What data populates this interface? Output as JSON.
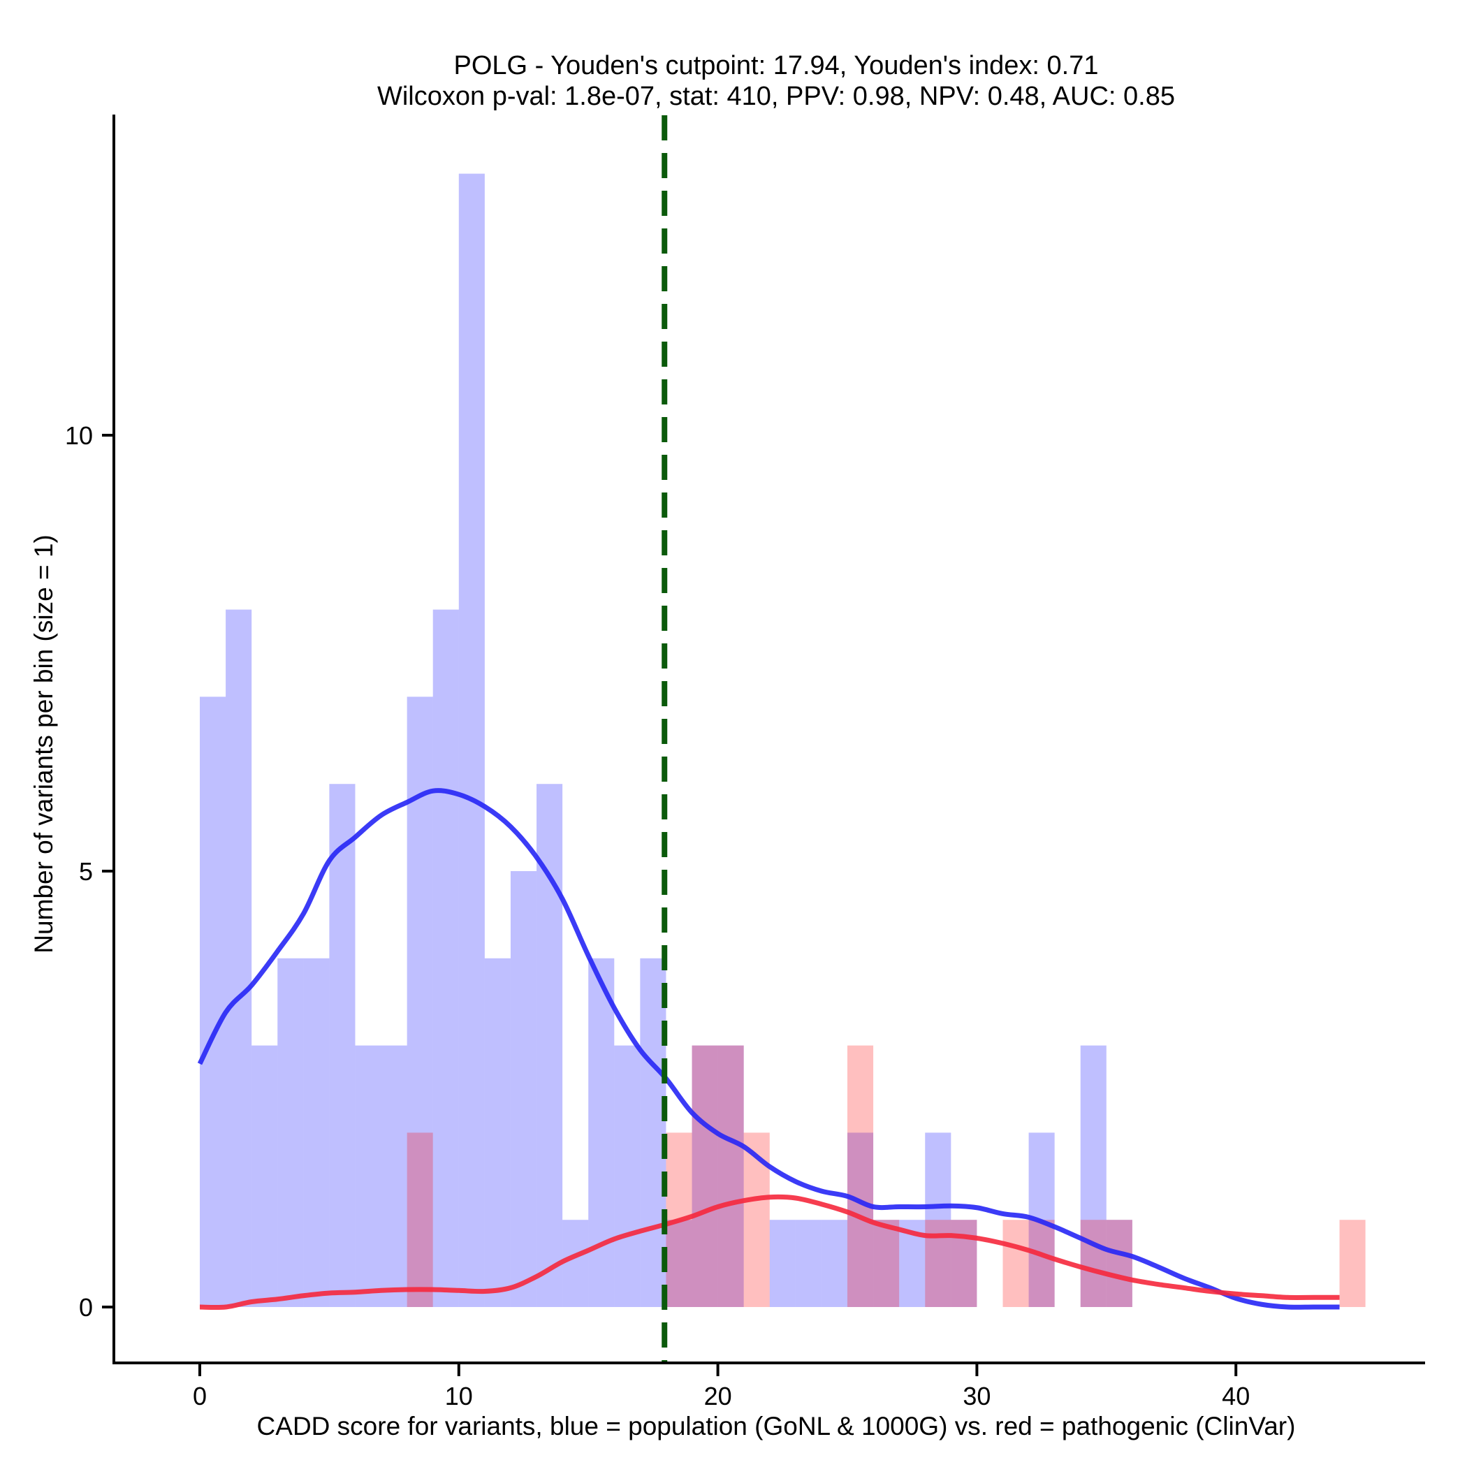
{
  "chart_data": {
    "type": "histogram",
    "title": "POLG - Youden's cutpoint: 17.94, Youden's index: 0.71",
    "subtitle": "Wilcoxon p-val: 1.8e-07, stat: 410, PPV: 0.98, NPV: 0.48, AUC: 0.85",
    "xlabel": "CADD score for variants, blue = population (GoNL & 1000G) vs. red = pathogenic (ClinVar)",
    "ylabel": "Number of variants per bin (size = 1)",
    "xlim": [
      -3.4,
      47.2
    ],
    "ylim": [
      -0.65,
      13.75
    ],
    "x_ticks": [
      0,
      10,
      20,
      30,
      40
    ],
    "x_tick_labels": [
      "0",
      "10",
      "20",
      "30",
      "40"
    ],
    "y_ticks": [
      0,
      5,
      10
    ],
    "y_tick_labels": [
      "0",
      "5",
      "10"
    ],
    "grid": false,
    "bin_width": 1,
    "cutpoint": {
      "value": 17.94,
      "label": "Youden's cutpoint",
      "color": "#0b5a0b",
      "style": "dashed"
    },
    "series": [
      {
        "name": "population (GoNL & 1000G)",
        "color": "#0000ff",
        "bar_alpha": 0.25,
        "bins": [
          {
            "start": 0,
            "count": 7
          },
          {
            "start": 1,
            "count": 8
          },
          {
            "start": 2,
            "count": 3
          },
          {
            "start": 3,
            "count": 4
          },
          {
            "start": 4,
            "count": 4
          },
          {
            "start": 5,
            "count": 6
          },
          {
            "start": 6,
            "count": 3
          },
          {
            "start": 7,
            "count": 3
          },
          {
            "start": 8,
            "count": 7
          },
          {
            "start": 9,
            "count": 8
          },
          {
            "start": 10,
            "count": 13
          },
          {
            "start": 11,
            "count": 4
          },
          {
            "start": 12,
            "count": 5
          },
          {
            "start": 13,
            "count": 6
          },
          {
            "start": 14,
            "count": 1
          },
          {
            "start": 15,
            "count": 4
          },
          {
            "start": 16,
            "count": 3
          },
          {
            "start": 17,
            "count": 4
          },
          {
            "start": 18,
            "count": 1
          },
          {
            "start": 19,
            "count": 3
          },
          {
            "start": 20,
            "count": 3
          },
          {
            "start": 22,
            "count": 1
          },
          {
            "start": 23,
            "count": 1
          },
          {
            "start": 24,
            "count": 1
          },
          {
            "start": 25,
            "count": 2
          },
          {
            "start": 26,
            "count": 1
          },
          {
            "start": 27,
            "count": 1
          },
          {
            "start": 28,
            "count": 2
          },
          {
            "start": 29,
            "count": 1
          },
          {
            "start": 32,
            "count": 2
          },
          {
            "start": 34,
            "count": 3
          },
          {
            "start": 35,
            "count": 1
          }
        ],
        "density_curve": {
          "color": "#2626f5",
          "x": [
            0,
            1,
            2,
            3,
            4,
            5,
            6,
            7,
            8,
            9,
            10,
            11,
            12,
            13,
            14,
            15,
            16,
            17,
            18,
            19,
            20,
            21,
            22,
            23,
            24,
            25,
            26,
            27,
            28,
            29,
            30,
            31,
            32,
            33,
            34,
            35,
            36,
            37,
            38,
            39,
            40,
            41,
            42,
            43,
            44
          ],
          "y": [
            2.79,
            3.38,
            3.69,
            4.08,
            4.51,
            5.12,
            5.39,
            5.64,
            5.79,
            5.92,
            5.88,
            5.74,
            5.51,
            5.16,
            4.68,
            4.03,
            3.43,
            2.95,
            2.62,
            2.23,
            1.99,
            1.84,
            1.61,
            1.44,
            1.33,
            1.27,
            1.15,
            1.15,
            1.15,
            1.16,
            1.14,
            1.07,
            1.03,
            0.92,
            0.79,
            0.66,
            0.58,
            0.46,
            0.33,
            0.22,
            0.1,
            0.03,
            0.0,
            0.0,
            0.0
          ]
        }
      },
      {
        "name": "pathogenic (ClinVar)",
        "color": "#ff0000",
        "bar_alpha": 0.25,
        "bins": [
          {
            "start": 8,
            "count": 2
          },
          {
            "start": 18,
            "count": 2
          },
          {
            "start": 19,
            "count": 3
          },
          {
            "start": 20,
            "count": 3
          },
          {
            "start": 21,
            "count": 2
          },
          {
            "start": 25,
            "count": 3
          },
          {
            "start": 26,
            "count": 1
          },
          {
            "start": 28,
            "count": 1
          },
          {
            "start": 29,
            "count": 1
          },
          {
            "start": 31,
            "count": 1
          },
          {
            "start": 32,
            "count": 1
          },
          {
            "start": 34,
            "count": 1
          },
          {
            "start": 35,
            "count": 1
          },
          {
            "start": 44,
            "count": 1
          }
        ],
        "density_curve": {
          "color": "#f5283c",
          "x": [
            0,
            1,
            2,
            3,
            4,
            5,
            6,
            7,
            8,
            9,
            10,
            11,
            12,
            13,
            14,
            15,
            16,
            17,
            18,
            19,
            20,
            21,
            22,
            23,
            24,
            25,
            26,
            27,
            28,
            29,
            30,
            31,
            32,
            33,
            34,
            35,
            36,
            37,
            38,
            39,
            40,
            41,
            42,
            43,
            44
          ],
          "y": [
            0.0,
            0.0,
            0.06,
            0.09,
            0.13,
            0.16,
            0.17,
            0.19,
            0.2,
            0.2,
            0.19,
            0.18,
            0.22,
            0.35,
            0.52,
            0.65,
            0.78,
            0.87,
            0.95,
            1.04,
            1.15,
            1.22,
            1.26,
            1.25,
            1.18,
            1.09,
            0.97,
            0.89,
            0.82,
            0.82,
            0.79,
            0.73,
            0.65,
            0.55,
            0.46,
            0.38,
            0.31,
            0.26,
            0.22,
            0.18,
            0.15,
            0.13,
            0.11,
            0.11,
            0.11
          ]
        }
      }
    ]
  }
}
